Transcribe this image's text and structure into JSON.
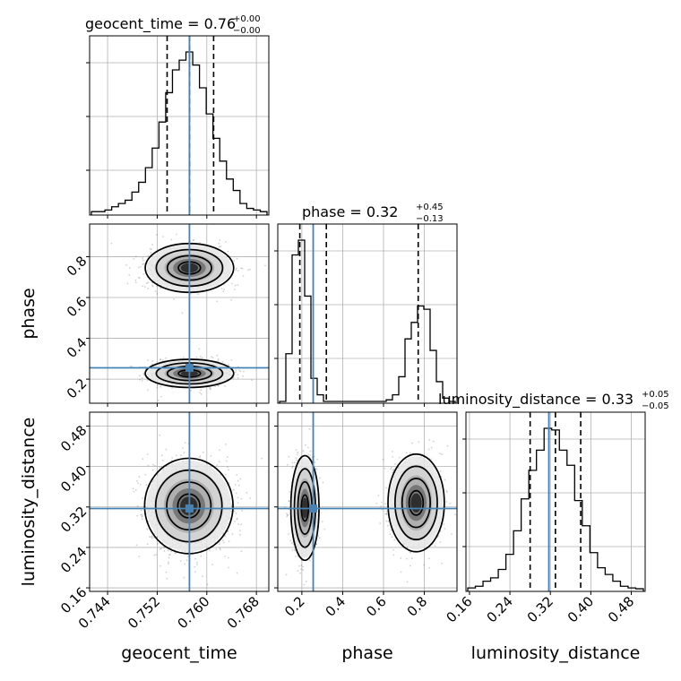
{
  "chart_data": {
    "type": "corner",
    "parameters": [
      "geocent_time",
      "phase",
      "luminosity_distance"
    ],
    "truths": {
      "geocent_time": 0.7572,
      "phase": 0.2555,
      "luminosity_distance": 0.317
    },
    "truth_color": "#4682b4",
    "titles": {
      "geocent_time": {
        "name": "geocent_time",
        "median": "0.76",
        "plus": "+0.00",
        "minus": "−0.00"
      },
      "phase": {
        "name": "phase",
        "median": "0.32",
        "plus": "+0.45",
        "minus": "−0.13"
      },
      "luminosity_distance": {
        "name": "luminosity_distance",
        "median": "0.33",
        "plus": "+0.05",
        "minus": "−0.05"
      }
    },
    "axes": {
      "geocent_time": {
        "range": [
          0.7411,
          0.77
        ],
        "ticks": [
          "0.744",
          "0.752",
          "0.760",
          "0.768"
        ],
        "tick_values": [
          0.744,
          0.752,
          0.76,
          0.768
        ]
      },
      "phase": {
        "range": [
          0.082,
          0.96
        ],
        "ticks": [
          "0.2",
          "0.4",
          "0.6",
          "0.8"
        ],
        "tick_values": [
          0.2,
          0.4,
          0.6,
          0.8
        ]
      },
      "luminosity_distance": {
        "range": [
          0.153,
          0.5075
        ],
        "ticks": [
          "0.16",
          "0.24",
          "0.32",
          "0.40",
          "0.48"
        ],
        "tick_values": [
          0.16,
          0.24,
          0.32,
          0.4,
          0.48
        ]
      }
    },
    "quantiles": {
      "geocent_time": [
        0.7536,
        0.7572,
        0.7611
      ],
      "phase": [
        0.19,
        0.32,
        0.77
      ],
      "luminosity_distance": [
        0.28,
        0.33,
        0.38
      ]
    },
    "histograms": {
      "geocent_time": [
        0.01,
        0.01,
        0.02,
        0.04,
        0.06,
        0.08,
        0.13,
        0.19,
        0.28,
        0.4,
        0.56,
        0.74,
        0.88,
        0.94,
        0.99,
        0.91,
        0.77,
        0.61,
        0.46,
        0.32,
        0.21,
        0.14,
        0.06,
        0.03,
        0.02,
        0.01
      ],
      "phase": [
        0.0,
        0.29,
        0.89,
        0.98,
        0.64,
        0.14,
        0.04,
        0.0,
        0.0,
        0.0,
        0.0,
        0.0,
        0.0,
        0.0,
        0.0,
        0.0,
        0.0,
        0.01,
        0.04,
        0.15,
        0.38,
        0.48,
        0.58,
        0.56,
        0.31,
        0.12,
        0.02,
        0.0
      ],
      "luminosity_distance": [
        0.01,
        0.02,
        0.05,
        0.07,
        0.12,
        0.21,
        0.35,
        0.54,
        0.71,
        0.83,
        0.96,
        0.95,
        0.83,
        0.74,
        0.53,
        0.38,
        0.22,
        0.13,
        0.09,
        0.05,
        0.02,
        0.01,
        0.005
      ]
    },
    "pairs": [
      {
        "x": "geocent_time",
        "y": "phase",
        "modes": [
          {
            "cx": 0.7572,
            "cy": 0.745,
            "sx": 0.0031,
            "sy": 0.052,
            "w": 0.55
          },
          {
            "cx": 0.7572,
            "cy": 0.228,
            "sx": 0.0031,
            "sy": 0.03,
            "w": 0.45
          }
        ]
      },
      {
        "x": "geocent_time",
        "y": "luminosity_distance",
        "modes": [
          {
            "cx": 0.7571,
            "cy": 0.322,
            "sx": 0.0031,
            "sy": 0.041,
            "w": 1.0
          }
        ]
      },
      {
        "x": "phase",
        "y": "luminosity_distance",
        "modes": [
          {
            "cx": 0.215,
            "cy": 0.318,
            "sx": 0.03,
            "sy": 0.045,
            "w": 0.5
          },
          {
            "cx": 0.76,
            "cy": 0.328,
            "sx": 0.06,
            "sy": 0.042,
            "w": 0.5
          }
        ]
      }
    ]
  }
}
